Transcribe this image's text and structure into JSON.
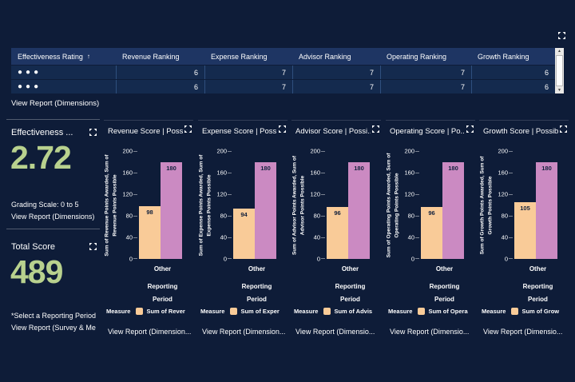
{
  "colors": {
    "background": "#0e1c38",
    "table_header_bg": "#1e3563",
    "table_row_bg": "#142a4e",
    "table_separator": "#2f4f7e",
    "bar_awarded": "#f9cb98",
    "bar_possible": "#cb8ac2",
    "kpi_value_green": "#b8d18e",
    "text": "#ffffff"
  },
  "icons": {
    "expand_icon": "four-corner-arrows focus/expand",
    "scroll_up_icon": "▲",
    "scroll_down_icon": "▼"
  },
  "table": {
    "columns": [
      "Effectiveness Rating",
      "Revenue Ranking",
      "Expense Ranking",
      "Advisor Ranking",
      "Operating Ranking",
      "Growth Ranking"
    ],
    "sort_indicator": "↑",
    "rows": [
      {
        "rating_dots": "●●●",
        "revenue": "6",
        "expense": "7",
        "advisor": "7",
        "operating": "7",
        "growth": "6"
      },
      {
        "rating_dots": "●●●",
        "revenue": "6",
        "expense": "7",
        "advisor": "7",
        "operating": "7",
        "growth": "6"
      }
    ],
    "footer_link": "View Report (Dimensions)"
  },
  "kpi_effectiveness": {
    "title": "Effectiveness ...",
    "value": "2.72",
    "note1": "Grading Scale: 0 to 5",
    "note2": "View Report (Dimensions)"
  },
  "kpi_total_score": {
    "title": "Total Score",
    "value": "489",
    "note1": "*Select a Reporting Period",
    "note2": "View Report (Survey & Me"
  },
  "chart_common": {
    "type": "bar",
    "y_max": 200,
    "y_ticks": [
      "200",
      "160",
      "120",
      "80",
      "40",
      "0"
    ],
    "category": "Other",
    "x_title_line1": "Reporting",
    "x_title_line2": "Period",
    "legend_title": "Measure"
  },
  "charts": [
    {
      "title": "Revenue Score | Poss...",
      "y_label_line1": "Sum of Revenue Points Awarded, Sum of",
      "y_label_line2": "Revenue Points Possible",
      "awarded": 98,
      "possible": 180,
      "legend_item": "Sum of Rever",
      "footer_link": "View Report (Dimension..."
    },
    {
      "title": "Expense Score | Poss...",
      "y_label_line1": "Sum of Expense Points Awarded, Sum of",
      "y_label_line2": "Expense Points Possible",
      "awarded": 94,
      "possible": 180,
      "legend_item": "Sum of Exper",
      "footer_link": "View Report (Dimension..."
    },
    {
      "title": "Advisor Score | Possi...",
      "y_label_line1": "Sum of Advisor Points Awarded, Sum of",
      "y_label_line2": "Advisor Points Possible",
      "awarded": 96,
      "possible": 180,
      "legend_item": "Sum of Advis",
      "footer_link": "View Report (Dimensio..."
    },
    {
      "title": "Operating Score | Po...",
      "y_label_line1": "Sum of Operating Points Awarded, Sum of",
      "y_label_line2": "Operating Points Possible",
      "awarded": 96,
      "possible": 180,
      "legend_item": "Sum of Opera",
      "footer_link": "View Report (Dimensio..."
    },
    {
      "title": "Growth Score | Possibl",
      "y_label_line1": "Sum of Growth Points Awarded, Sum of",
      "y_label_line2": "Growth Points Possible",
      "awarded": 105,
      "possible": 180,
      "legend_item": "Sum of Grow",
      "footer_link": "View Report (Dimensio..."
    }
  ]
}
